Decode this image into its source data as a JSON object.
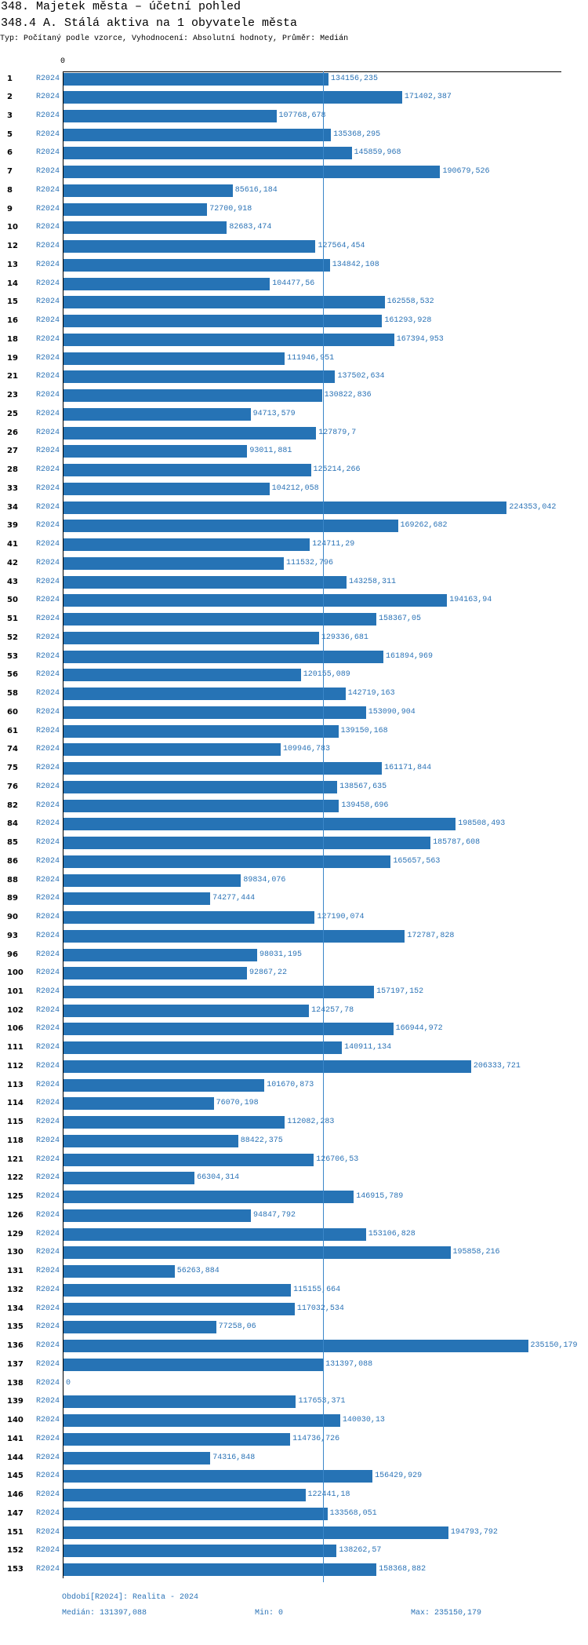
{
  "chart_data": {
    "type": "bar",
    "title": "348. Majetek města – účetní pohled",
    "subtitle": "348.4 A. Stálá aktiva na 1 obyvatele města",
    "info_line": "Typ: Počítaný podle vzorce, Vyhodnocení: Absolutní hodnoty, Průměr: Medián",
    "x_tick_labels": [
      "0"
    ],
    "xlim": [
      0,
      252000
    ],
    "categories": [
      "1",
      "2",
      "3",
      "5",
      "6",
      "7",
      "8",
      "9",
      "10",
      "12",
      "13",
      "14",
      "15",
      "16",
      "18",
      "19",
      "21",
      "23",
      "25",
      "26",
      "27",
      "28",
      "33",
      "34",
      "39",
      "41",
      "42",
      "43",
      "50",
      "51",
      "52",
      "53",
      "56",
      "58",
      "60",
      "61",
      "74",
      "75",
      "76",
      "82",
      "84",
      "85",
      "86",
      "88",
      "89",
      "90",
      "93",
      "96",
      "100",
      "101",
      "102",
      "106",
      "111",
      "112",
      "113",
      "114",
      "115",
      "118",
      "121",
      "122",
      "125",
      "126",
      "129",
      "130",
      "131",
      "132",
      "134",
      "135",
      "136",
      "137",
      "138",
      "139",
      "140",
      "141",
      "144",
      "145",
      "146",
      "147",
      "151",
      "152",
      "153"
    ],
    "series": [
      {
        "name": "R2024",
        "values": [
          134156.235,
          171402.387,
          107768.678,
          135368.295,
          145859.968,
          190679.526,
          85616.184,
          72700.918,
          82683.474,
          127564.454,
          134842.108,
          104477.56,
          162558.532,
          161293.928,
          167394.953,
          111946.951,
          137502.634,
          130822.836,
          94713.579,
          127879.7,
          93011.881,
          125214.266,
          104212.058,
          224353.042,
          169262.682,
          124711.29,
          111532.796,
          143258.311,
          194163.94,
          158367.05,
          129336.681,
          161894.969,
          120155.089,
          142719.163,
          153090.904,
          139150.168,
          109946.783,
          161171.844,
          138567.635,
          139458.696,
          198508.493,
          185787.608,
          165657.563,
          89834.076,
          74277.444,
          127190.074,
          172787.828,
          98031.195,
          92867.22,
          157197.152,
          124257.78,
          166944.972,
          140911.134,
          206333.721,
          101670.873,
          76070.198,
          112082.283,
          88422.375,
          126706.53,
          66304.314,
          146915.789,
          94847.792,
          153106.828,
          195858.216,
          56263.884,
          115155.664,
          117032.534,
          77258.06,
          235150.179,
          131397.088,
          0,
          117653.371,
          140030.13,
          114736.726,
          74316.848,
          156429.929,
          122441.18,
          133568.051,
          194793.792,
          138262.57,
          158368.882
        ],
        "value_labels": [
          "134156,235",
          "171402,387",
          "107768,678",
          "135368,295",
          "145859,968",
          "190679,526",
          "85616,184",
          "72700,918",
          "82683,474",
          "127564,454",
          "134842,108",
          "104477,56",
          "162558,532",
          "161293,928",
          "167394,953",
          "111946,951",
          "137502,634",
          "130822,836",
          "94713,579",
          "127879,7",
          "93011,881",
          "125214,266",
          "104212,058",
          "224353,042",
          "169262,682",
          "124711,29",
          "111532,796",
          "143258,311",
          "194163,94",
          "158367,05",
          "129336,681",
          "161894,969",
          "120155,089",
          "142719,163",
          "153090,904",
          "139150,168",
          "109946,783",
          "161171,844",
          "138567,635",
          "139458,696",
          "198508,493",
          "185787,608",
          "165657,563",
          "89834,076",
          "74277,444",
          "127190,074",
          "172787,828",
          "98031,195",
          "92867,22",
          "157197,152",
          "124257,78",
          "166944,972",
          "140911,134",
          "206333,721",
          "101670,873",
          "76070,198",
          "112082,283",
          "88422,375",
          "126706,53",
          "66304,314",
          "146915,789",
          "94847,792",
          "153106,828",
          "195858,216",
          "56263,884",
          "115155,664",
          "117032,534",
          "77258,06",
          "235150,179",
          "131397,088",
          "0",
          "117653,371",
          "140030,13",
          "114736,726",
          "74316,848",
          "156429,929",
          "122441,18",
          "133568,051",
          "194793,792",
          "138262,57",
          "158368,882"
        ]
      }
    ],
    "median_line": {
      "value": 131397.088
    }
  },
  "footer": {
    "period": "Období[R2024]: Realita - 2024",
    "median": "Medián: 131397,088",
    "min": "Min: 0",
    "max": "Max: 235150,179"
  },
  "colors": {
    "bar": "#2673b5",
    "label_text": "#2b73b6",
    "median_line": "#3b86c9",
    "axis": "#000000",
    "text": "#000000"
  }
}
